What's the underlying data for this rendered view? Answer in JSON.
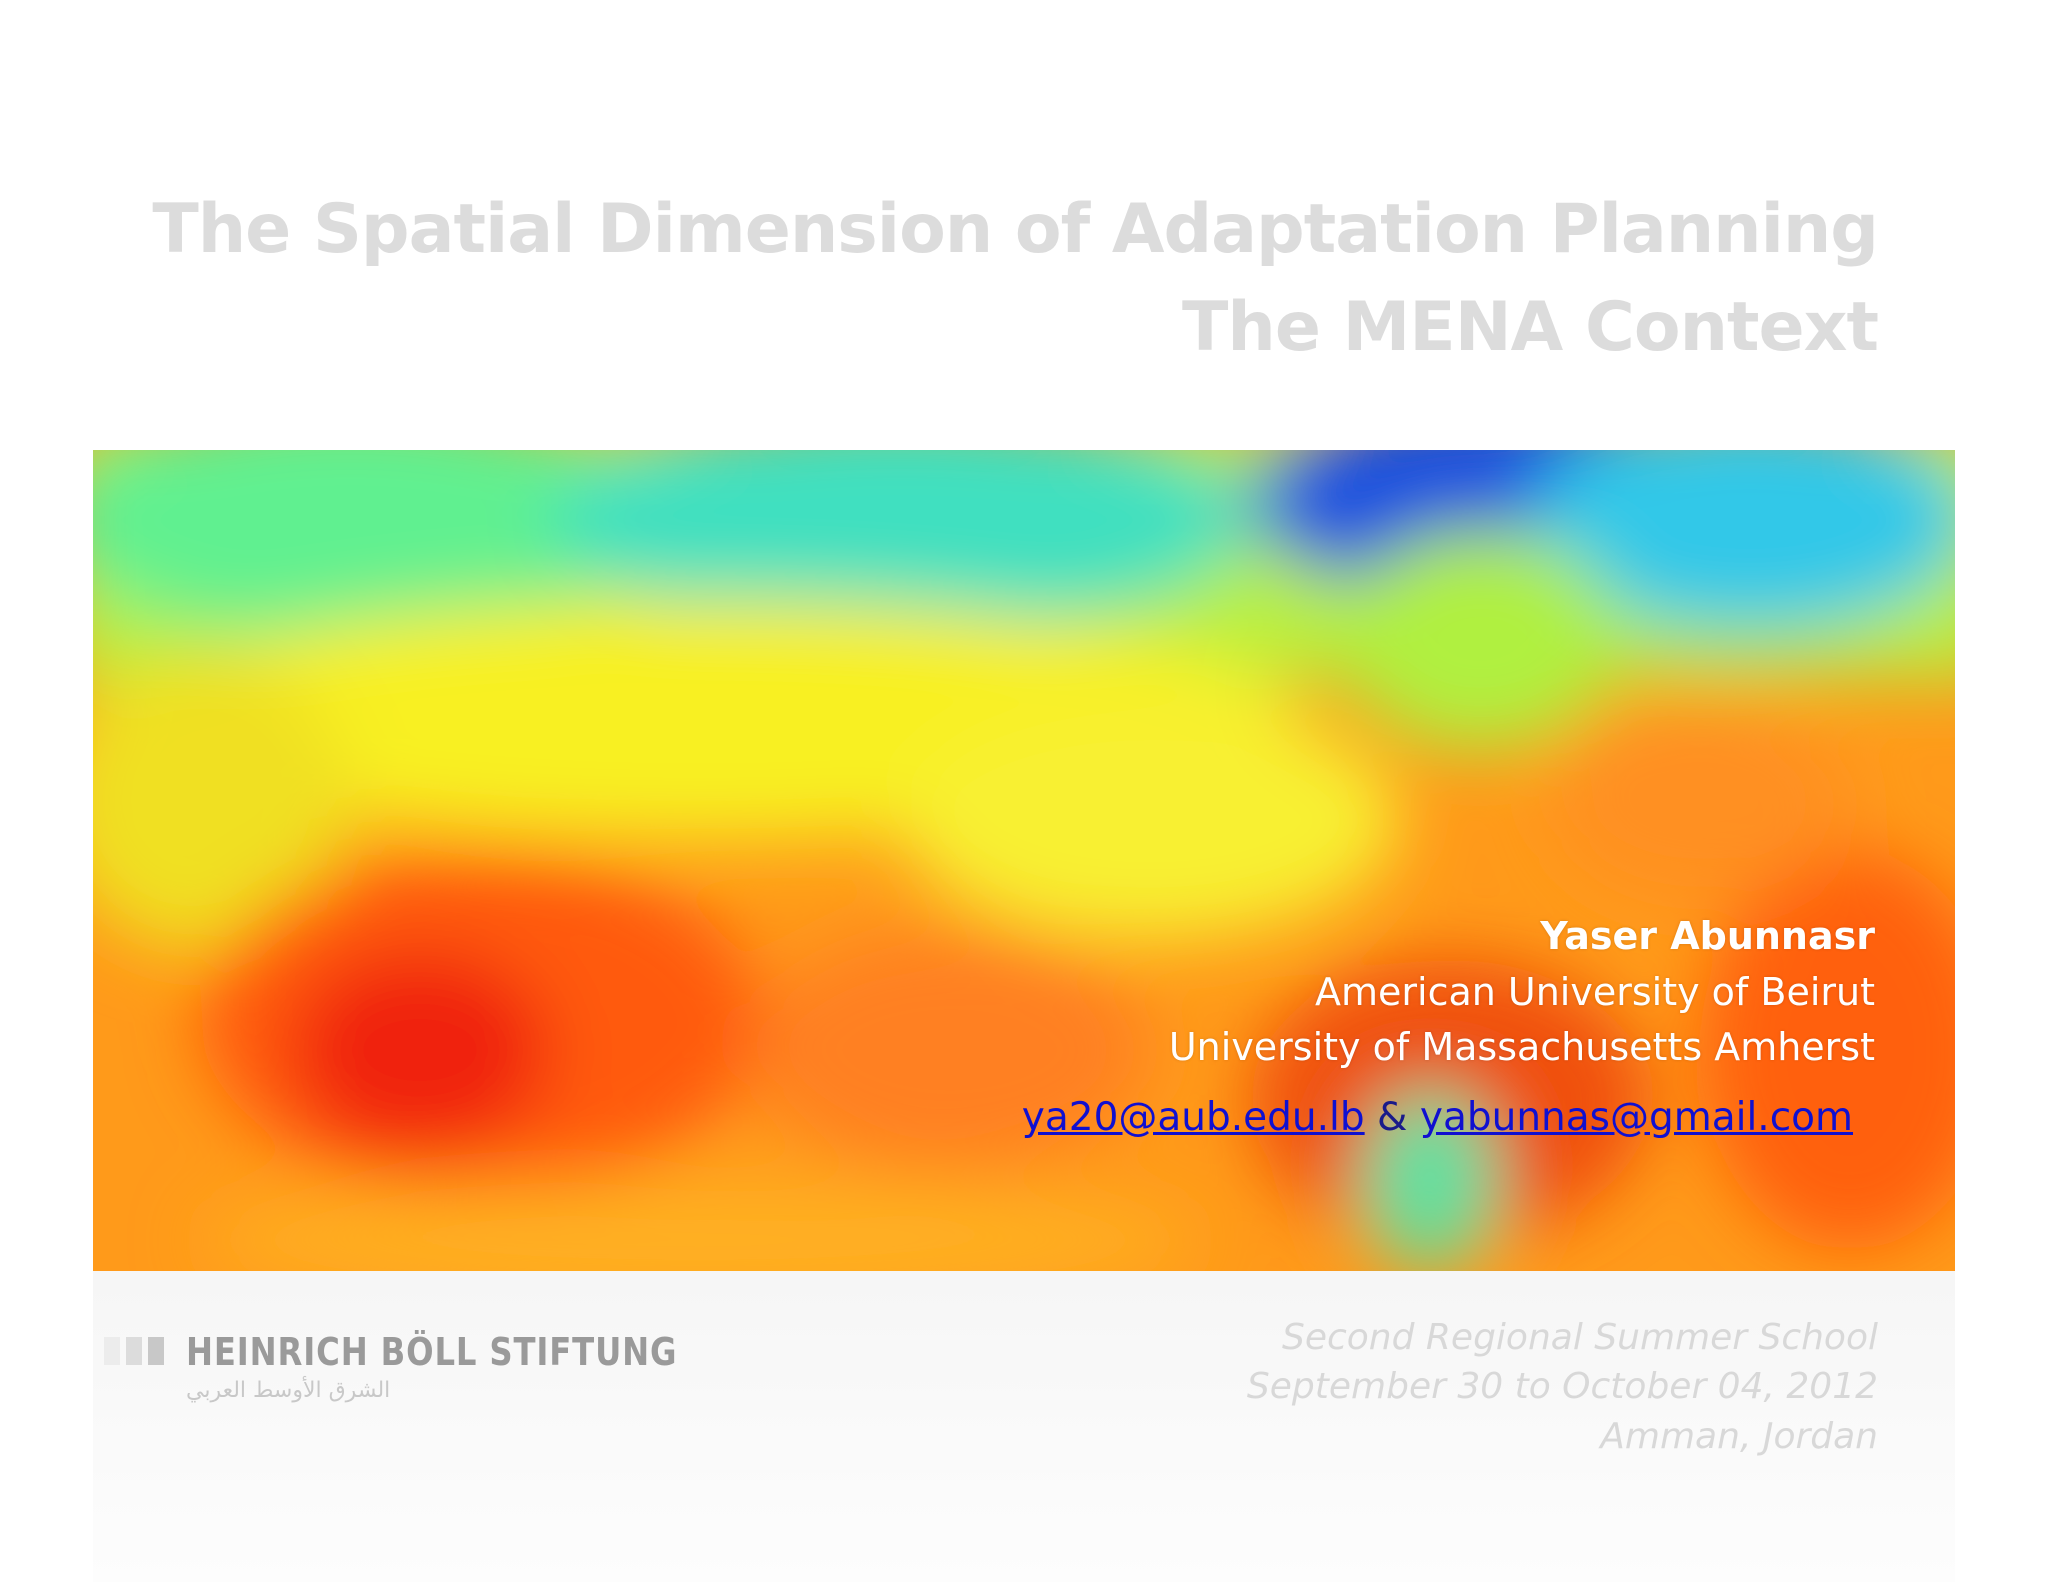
{
  "title": {
    "line1": "The Spatial Dimension of Adaptation Planning",
    "line2": "The MENA Context"
  },
  "author": {
    "name": "Yaser Abunnasr",
    "affiliation1": "American University of Beirut",
    "affiliation2": "University of Massachusetts Amherst",
    "email1": "ya20@aub.edu.lb",
    "separator": "&",
    "email2": "yabunnas@gmail.com"
  },
  "logo": {
    "name": "HEINRICH BÖLL STIFTUNG",
    "subtitle": "الشرق الأوسط العربي"
  },
  "event": {
    "line1": "Second Regional Summer School",
    "line2": "September 30 to October 04, 2012",
    "line3": "Amman, Jordan"
  }
}
